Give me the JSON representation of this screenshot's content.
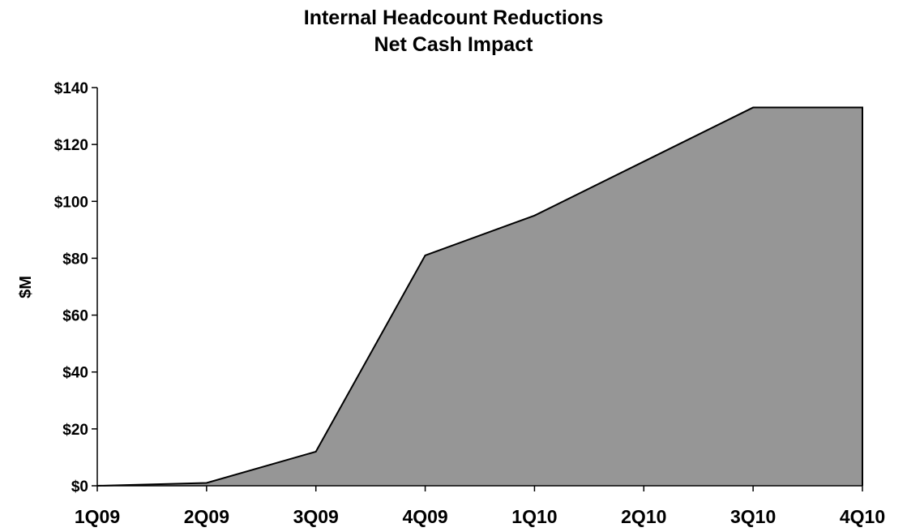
{
  "chart_data": {
    "type": "area",
    "title": "Internal Headcount Reductions",
    "subtitle": "Net Cash Impact",
    "xlabel": "",
    "ylabel": "$M",
    "categories": [
      "1Q09",
      "2Q09",
      "3Q09",
      "4Q09",
      "1Q10",
      "2Q10",
      "3Q10",
      "4Q10"
    ],
    "series": [
      {
        "values": [
          0,
          1,
          12,
          81,
          95,
          114,
          133,
          133
        ]
      }
    ],
    "ylim": [
      0,
      140
    ],
    "yticks": [
      0,
      20,
      40,
      60,
      80,
      100,
      120,
      140
    ],
    "ytick_labels": [
      "$0",
      "$20",
      "$40",
      "$60",
      "$80",
      "$100",
      "$120",
      "$140"
    ],
    "grid": false,
    "colors": {
      "fill": "#969696",
      "line": "#000000"
    }
  }
}
